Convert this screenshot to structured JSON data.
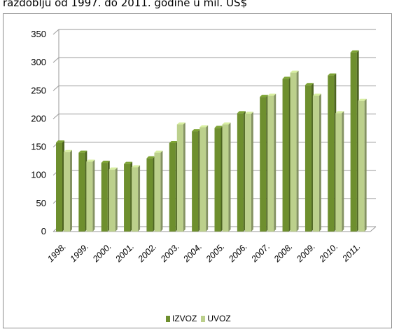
{
  "caption": "razdoblju od 1997. do 2011. godine u mil. US$",
  "colors": {
    "izvoz": "#6e8f2e",
    "uvoz": "#bcd08c",
    "gridline": "#9a9a9a"
  },
  "chart_data": {
    "type": "bar",
    "title": "",
    "xlabel": "",
    "ylabel": "",
    "categories": [
      "1998.",
      "1999.",
      "2000.",
      "2001.",
      "2002.",
      "2003.",
      "2004.",
      "2005.",
      "2006.",
      "2007.",
      "2008.",
      "2009.",
      "2010.",
      "2011."
    ],
    "series": [
      {
        "name": "IZVOZ",
        "values": [
          158,
          140,
          122,
          120,
          130,
          157,
          178,
          184,
          210,
          239,
          271,
          260,
          277,
          318
        ]
      },
      {
        "name": "UVOZ",
        "values": [
          141,
          124,
          110,
          114,
          140,
          190,
          185,
          190,
          209,
          241,
          282,
          241,
          210,
          232
        ]
      }
    ],
    "ylim": [
      0,
      350
    ],
    "yticks": [
      "0",
      "50",
      "100",
      "150",
      "200",
      "250",
      "300",
      "350"
    ],
    "grid": true,
    "legend": "bottom"
  }
}
